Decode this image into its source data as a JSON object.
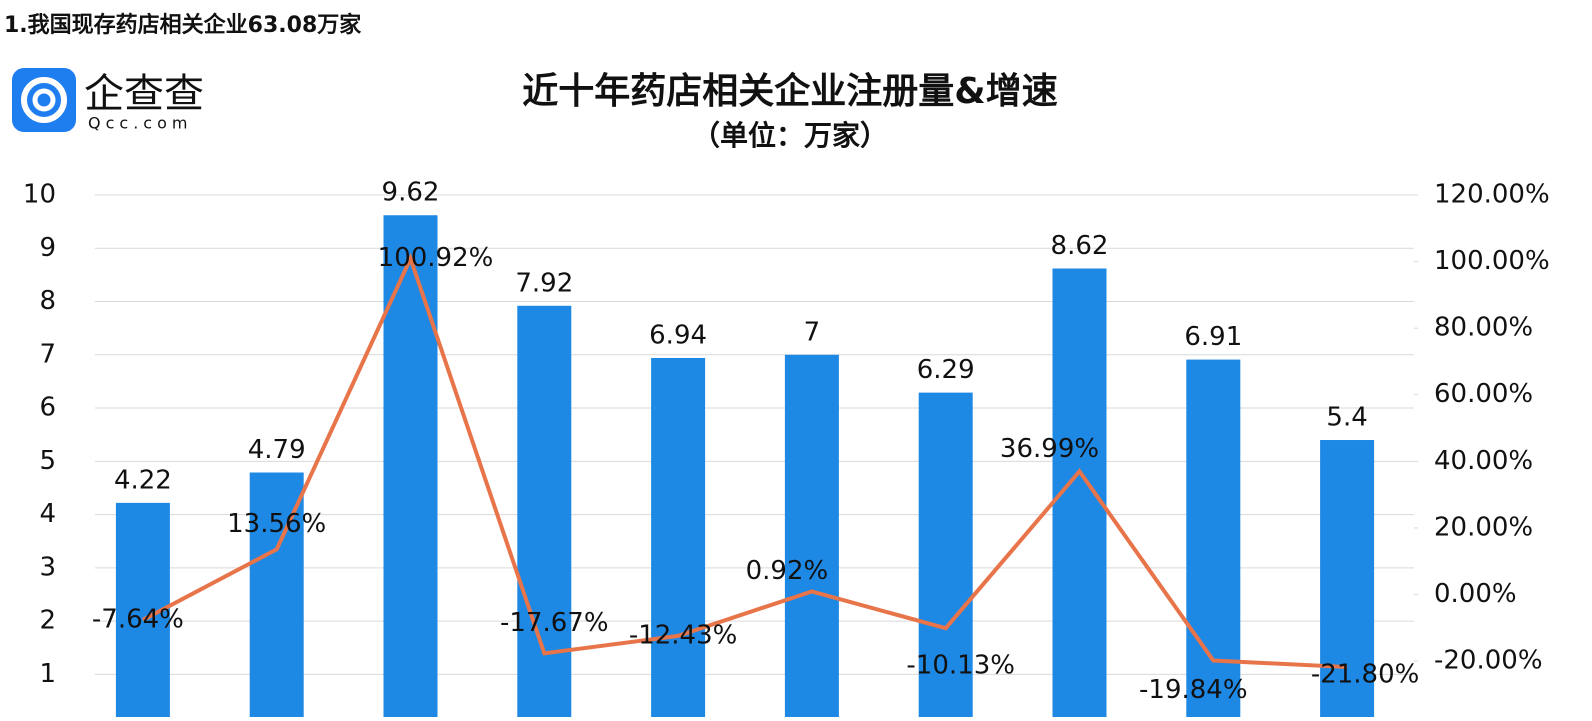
{
  "heading": "1.我国现存药店相关企业63.08万家",
  "logo": {
    "name": "企查查",
    "domain": "Qcc.com"
  },
  "chart_data": {
    "type": "bar",
    "title": "近十年药店相关企业注册量&增速",
    "subtitle": "（单位：万家）",
    "categories": [
      null,
      null,
      null,
      null,
      null,
      null,
      null,
      null,
      null,
      null
    ],
    "series": [
      {
        "type": "bar",
        "color": "#1e88e5",
        "values": [
          4.22,
          4.79,
          9.62,
          7.92,
          6.94,
          7,
          6.29,
          8.62,
          6.91,
          5.4
        ]
      },
      {
        "type": "line",
        "axis": "y2",
        "color": "#e8744a",
        "values": [
          -7.64,
          13.56,
          100.92,
          -17.67,
          -12.43,
          0.92,
          -10.13,
          36.99,
          -19.84,
          -21.8
        ],
        "value_labels": [
          "-7.64%",
          "13.56%",
          "100.92%",
          "-17.67%",
          "-12.43%",
          "0.92%",
          "-10.13%",
          "36.99%",
          "-19.84%",
          "-21.80%"
        ]
      }
    ],
    "ylim": [
      0.2,
      10
    ],
    "yticks": [
      1,
      2,
      3,
      4,
      5,
      6,
      7,
      8,
      9,
      10
    ],
    "y2lim": [
      -36.8,
      120
    ],
    "y2ticks": [
      {
        "value": -20,
        "label": "-20.00%"
      },
      {
        "value": 0,
        "label": "0.00%"
      },
      {
        "value": 20,
        "label": "20.00%"
      },
      {
        "value": 40,
        "label": "40.00%"
      },
      {
        "value": 60,
        "label": "60.00%"
      },
      {
        "value": 80,
        "label": "80.00%"
      },
      {
        "value": 100,
        "label": "100.00%"
      },
      {
        "value": 120,
        "label": "120.00%"
      }
    ],
    "grid": true
  }
}
